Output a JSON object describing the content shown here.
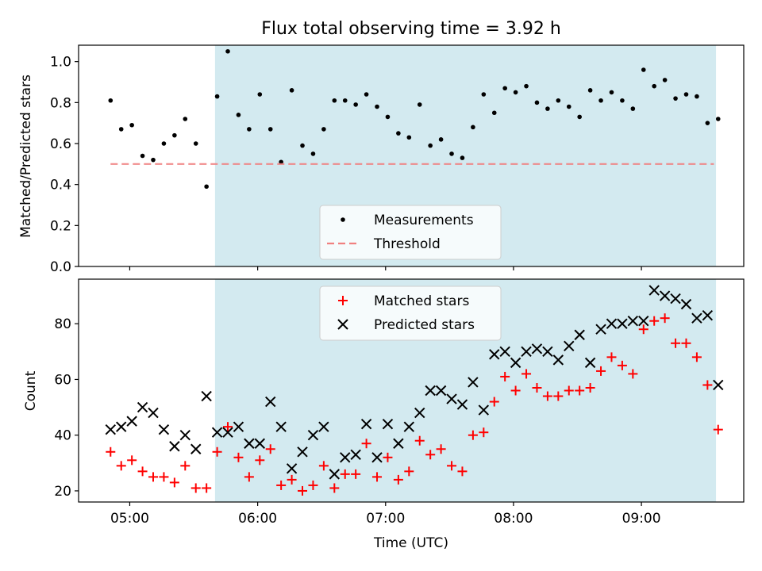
{
  "chart_data": [
    {
      "type": "scatter",
      "title": "Flux total observing time = 3.92 h",
      "xlabel": "",
      "ylabel": "Matched/Predicted stars",
      "xlim": [
        "04:36",
        "09:48"
      ],
      "ylim": [
        0,
        1.08
      ],
      "yticks": [
        "0.0",
        "0.2",
        "0.4",
        "0.6",
        "0.8",
        "1.0"
      ],
      "shaded_interval": [
        "05:40",
        "09:35"
      ],
      "shade_color": "#d3eaf0",
      "legend": {
        "location": "lower-center",
        "entries": [
          {
            "label": "Measurements",
            "marker": "dot",
            "color": "#000000"
          },
          {
            "label": "Threshold",
            "marker": "dashed-line",
            "color": "#f08080"
          }
        ]
      },
      "series": [
        {
          "name": "Measurements",
          "marker": "dot",
          "color": "#000000",
          "points": [
            [
              "04:51",
              0.81
            ],
            [
              "04:56",
              0.67
            ],
            [
              "05:01",
              0.69
            ],
            [
              "05:06",
              0.54
            ],
            [
              "05:11",
              0.52
            ],
            [
              "05:16",
              0.6
            ],
            [
              "05:21",
              0.64
            ],
            [
              "05:26",
              0.72
            ],
            [
              "05:31",
              0.6
            ],
            [
              "05:36",
              0.39
            ],
            [
              "05:41",
              0.83
            ],
            [
              "05:46",
              1.05
            ],
            [
              "05:51",
              0.74
            ],
            [
              "05:56",
              0.67
            ],
            [
              "06:01",
              0.84
            ],
            [
              "06:06",
              0.67
            ],
            [
              "06:11",
              0.51
            ],
            [
              "06:16",
              0.86
            ],
            [
              "06:21",
              0.59
            ],
            [
              "06:26",
              0.55
            ],
            [
              "06:31",
              0.67
            ],
            [
              "06:36",
              0.81
            ],
            [
              "06:41",
              0.81
            ],
            [
              "06:46",
              0.79
            ],
            [
              "06:51",
              0.84
            ],
            [
              "06:56",
              0.78
            ],
            [
              "07:01",
              0.73
            ],
            [
              "07:06",
              0.65
            ],
            [
              "07:11",
              0.63
            ],
            [
              "07:16",
              0.79
            ],
            [
              "07:21",
              0.59
            ],
            [
              "07:26",
              0.62
            ],
            [
              "07:31",
              0.55
            ],
            [
              "07:36",
              0.53
            ],
            [
              "07:41",
              0.68
            ],
            [
              "07:46",
              0.84
            ],
            [
              "07:51",
              0.75
            ],
            [
              "07:56",
              0.87
            ],
            [
              "08:01",
              0.85
            ],
            [
              "08:06",
              0.88
            ],
            [
              "08:11",
              0.8
            ],
            [
              "08:16",
              0.77
            ],
            [
              "08:21",
              0.81
            ],
            [
              "08:26",
              0.78
            ],
            [
              "08:31",
              0.73
            ],
            [
              "08:36",
              0.86
            ],
            [
              "08:41",
              0.81
            ],
            [
              "08:46",
              0.85
            ],
            [
              "08:51",
              0.81
            ],
            [
              "08:56",
              0.77
            ],
            [
              "09:01",
              0.96
            ],
            [
              "09:06",
              0.88
            ],
            [
              "09:11",
              0.91
            ],
            [
              "09:16",
              0.82
            ],
            [
              "09:21",
              0.84
            ],
            [
              "09:26",
              0.83
            ],
            [
              "09:31",
              0.7
            ],
            [
              "09:36",
              0.72
            ]
          ]
        },
        {
          "name": "Threshold",
          "marker": "dashed-line",
          "color": "#f08080",
          "points": [
            [
              "04:51",
              0.5
            ],
            [
              "09:34",
              0.5
            ]
          ]
        }
      ]
    },
    {
      "type": "scatter",
      "title": "",
      "xlabel": "Time (UTC)",
      "ylabel": "Count",
      "xlim": [
        "04:36",
        "09:48"
      ],
      "ylim": [
        16,
        96
      ],
      "yticks": [
        "20",
        "40",
        "60",
        "80"
      ],
      "xticks": [
        "05:00",
        "06:00",
        "07:00",
        "08:00",
        "09:00"
      ],
      "shaded_interval": [
        "05:40",
        "09:35"
      ],
      "shade_color": "#d3eaf0",
      "legend": {
        "location": "top-center",
        "entries": [
          {
            "label": "Matched stars",
            "marker": "plus",
            "color": "#ff0000"
          },
          {
            "label": "Predicted stars",
            "marker": "x",
            "color": "#000000"
          }
        ]
      },
      "x": [
        "04:51",
        "04:56",
        "05:01",
        "05:06",
        "05:11",
        "05:16",
        "05:21",
        "05:26",
        "05:31",
        "05:36",
        "05:41",
        "05:46",
        "05:51",
        "05:56",
        "06:01",
        "06:06",
        "06:11",
        "06:16",
        "06:21",
        "06:26",
        "06:31",
        "06:36",
        "06:41",
        "06:46",
        "06:51",
        "06:56",
        "07:01",
        "07:06",
        "07:11",
        "07:16",
        "07:21",
        "07:26",
        "07:31",
        "07:36",
        "07:41",
        "07:46",
        "07:51",
        "07:56",
        "08:01",
        "08:06",
        "08:11",
        "08:16",
        "08:21",
        "08:26",
        "08:31",
        "08:36",
        "08:41",
        "08:46",
        "08:51",
        "08:56",
        "09:01",
        "09:06",
        "09:11",
        "09:16",
        "09:21",
        "09:26",
        "09:31",
        "09:36"
      ],
      "series": [
        {
          "name": "Matched stars",
          "marker": "plus",
          "color": "#ff0000",
          "values": [
            34,
            29,
            31,
            27,
            25,
            25,
            23,
            29,
            21,
            21,
            34,
            43,
            32,
            25,
            31,
            35,
            22,
            24,
            20,
            22,
            29,
            21,
            26,
            26,
            37,
            25,
            32,
            24,
            27,
            38,
            33,
            35,
            29,
            27,
            40,
            41,
            52,
            61,
            56,
            62,
            57,
            54,
            54,
            56,
            56,
            57,
            63,
            68,
            65,
            62,
            78,
            81,
            82,
            73,
            73,
            68,
            58,
            42
          ]
        },
        {
          "name": "Predicted stars",
          "marker": "x",
          "color": "#000000",
          "values": [
            42,
            43,
            45,
            50,
            48,
            42,
            36,
            40,
            35,
            54,
            41,
            41,
            43,
            37,
            37,
            52,
            43,
            28,
            34,
            40,
            43,
            26,
            32,
            33,
            44,
            32,
            44,
            37,
            43,
            48,
            56,
            56,
            53,
            51,
            59,
            49,
            69,
            70,
            66,
            70,
            71,
            70,
            67,
            72,
            76,
            66,
            78,
            80,
            80,
            81,
            81,
            92,
            90,
            89,
            87,
            82,
            83,
            58
          ]
        }
      ]
    }
  ]
}
